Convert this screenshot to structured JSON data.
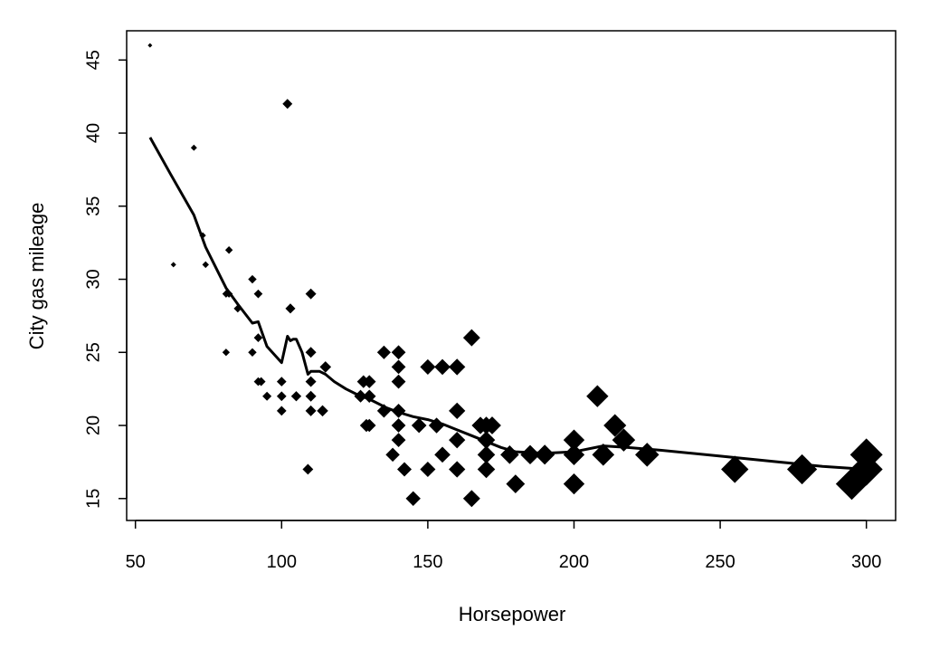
{
  "chart_data": {
    "type": "scatter",
    "xlabel": "Horsepower",
    "ylabel": "City gas mileage",
    "xlim": [
      47,
      310
    ],
    "ylim": [
      13.5,
      47
    ],
    "xticks": [
      50,
      100,
      150,
      200,
      250,
      300
    ],
    "yticks": [
      15,
      20,
      25,
      30,
      35,
      40,
      45
    ],
    "grid": false,
    "marker": "diamond",
    "marker_size_scales_with": "x",
    "colors": {
      "points": "#000000",
      "line": "#000000",
      "axes": "#000000"
    },
    "series": [
      {
        "kind": "points",
        "data": [
          [
            55,
            46
          ],
          [
            70,
            39
          ],
          [
            63,
            31
          ],
          [
            73,
            33
          ],
          [
            74,
            31
          ],
          [
            81,
            29
          ],
          [
            82,
            32
          ],
          [
            82,
            29
          ],
          [
            81,
            25
          ],
          [
            85,
            28
          ],
          [
            90,
            30
          ],
          [
            92,
            29
          ],
          [
            90,
            25
          ],
          [
            92,
            26
          ],
          [
            92,
            23
          ],
          [
            93,
            23
          ],
          [
            95,
            22
          ],
          [
            100,
            23
          ],
          [
            100,
            22
          ],
          [
            100,
            21
          ],
          [
            102,
            42
          ],
          [
            103,
            28
          ],
          [
            105,
            22
          ],
          [
            109,
            17
          ],
          [
            110,
            29
          ],
          [
            110,
            25
          ],
          [
            110,
            23
          ],
          [
            110,
            22
          ],
          [
            110,
            21
          ],
          [
            114,
            21
          ],
          [
            115,
            24
          ],
          [
            127,
            22
          ],
          [
            128,
            23
          ],
          [
            129,
            20
          ],
          [
            130,
            23
          ],
          [
            130,
            22
          ],
          [
            130,
            20
          ],
          [
            135,
            25
          ],
          [
            135,
            21
          ],
          [
            138,
            18
          ],
          [
            140,
            25
          ],
          [
            140,
            24
          ],
          [
            140,
            23
          ],
          [
            140,
            20
          ],
          [
            140,
            21
          ],
          [
            140,
            19
          ],
          [
            142,
            17
          ],
          [
            145,
            15
          ],
          [
            147,
            20
          ],
          [
            150,
            24
          ],
          [
            150,
            17
          ],
          [
            153,
            20
          ],
          [
            155,
            24
          ],
          [
            155,
            18
          ],
          [
            160,
            24
          ],
          [
            160,
            21
          ],
          [
            160,
            19
          ],
          [
            160,
            17
          ],
          [
            165,
            26
          ],
          [
            165,
            15
          ],
          [
            168,
            20
          ],
          [
            170,
            20
          ],
          [
            170,
            19
          ],
          [
            170,
            18
          ],
          [
            170,
            17
          ],
          [
            172,
            20
          ],
          [
            178,
            18
          ],
          [
            180,
            16
          ],
          [
            185,
            18
          ],
          [
            190,
            18
          ],
          [
            200,
            19
          ],
          [
            200,
            18
          ],
          [
            200,
            16
          ],
          [
            208,
            22
          ],
          [
            210,
            18
          ],
          [
            214,
            20
          ],
          [
            217,
            19
          ],
          [
            225,
            18
          ],
          [
            255,
            17
          ],
          [
            278,
            17
          ],
          [
            295,
            16
          ],
          [
            300,
            18
          ],
          [
            300,
            17
          ]
        ]
      },
      {
        "kind": "smooth-line",
        "data": [
          [
            55,
            39.7
          ],
          [
            62,
            37.2
          ],
          [
            70,
            34.4
          ],
          [
            74,
            32.2
          ],
          [
            78,
            30.6
          ],
          [
            81,
            29.4
          ],
          [
            85,
            28.3
          ],
          [
            90,
            27.0
          ],
          [
            92,
            27.1
          ],
          [
            95,
            25.4
          ],
          [
            100,
            24.3
          ],
          [
            102,
            26.1
          ],
          [
            103,
            25.8
          ],
          [
            104,
            25.9
          ],
          [
            105,
            25.9
          ],
          [
            107,
            25.0
          ],
          [
            109,
            23.5
          ],
          [
            110,
            23.7
          ],
          [
            113,
            23.7
          ],
          [
            115,
            23.5
          ],
          [
            118,
            23.0
          ],
          [
            122,
            22.5
          ],
          [
            126,
            22.1
          ],
          [
            130,
            21.8
          ],
          [
            136,
            21.2
          ],
          [
            140,
            20.9
          ],
          [
            145,
            20.6
          ],
          [
            150,
            20.4
          ],
          [
            155,
            20.1
          ],
          [
            160,
            19.7
          ],
          [
            165,
            19.3
          ],
          [
            170,
            18.9
          ],
          [
            175,
            18.5
          ],
          [
            180,
            18.2
          ],
          [
            190,
            18.1
          ],
          [
            200,
            18.2
          ],
          [
            210,
            18.6
          ],
          [
            218,
            18.5
          ],
          [
            230,
            18.3
          ],
          [
            250,
            17.9
          ],
          [
            270,
            17.5
          ],
          [
            285,
            17.2
          ],
          [
            300,
            17.0
          ]
        ]
      }
    ]
  }
}
